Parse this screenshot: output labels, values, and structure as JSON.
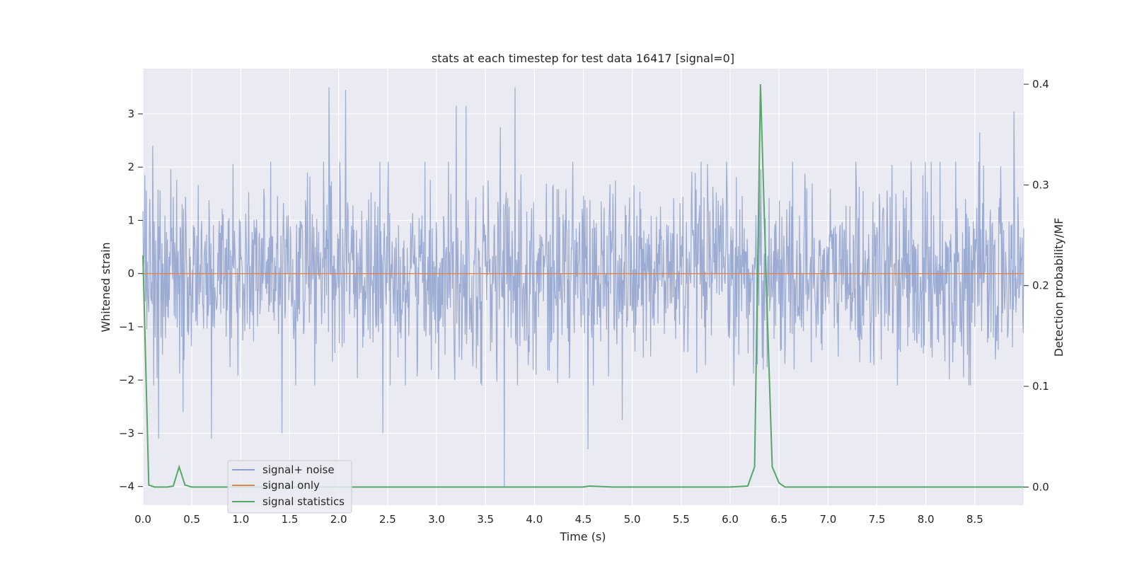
{
  "chart_data": {
    "type": "line",
    "title": "stats at each timestep for test data 16417 [signal=0]",
    "xlabel": "Time (s)",
    "ylabel": "Whitened strain",
    "y2label": "Detection probability/MF",
    "xlim": [
      0.0,
      9.0
    ],
    "ylim": [
      -4.35,
      3.85
    ],
    "y2lim": [
      -0.018,
      0.4155
    ],
    "x_ticks": [
      "0.0",
      "0.5",
      "1.0",
      "1.5",
      "2.0",
      "2.5",
      "3.0",
      "3.5",
      "4.0",
      "4.5",
      "5.0",
      "5.5",
      "6.0",
      "6.5",
      "7.0",
      "7.5",
      "8.0",
      "8.5"
    ],
    "y_ticks": [
      "3",
      "2",
      "1",
      "0",
      "−1",
      "−2",
      "−3",
      "−4"
    ],
    "y2_ticks": [
      "0.4",
      "0.3",
      "0.2",
      "0.1",
      "0.0"
    ],
    "grid": true,
    "legend_position": "lower-left",
    "colors": {
      "signal_noise": "#8da0cb",
      "signal_only": "#dd8452",
      "signal_statistics": "#55a868",
      "background": "#eaeaf2",
      "grid": "#ffffff"
    },
    "series": [
      {
        "name": "signal+ noise",
        "axis": "left",
        "note_values": "noise-like whitened strain, envelope approx ±1.7 with spikes",
        "peaks": [
          {
            "x": 0.02,
            "y": 1.85
          },
          {
            "x": 0.1,
            "y": 2.4
          },
          {
            "x": 0.16,
            "y": 2.9
          },
          {
            "x": 0.16,
            "y": -3.1
          },
          {
            "x": 0.41,
            "y": -2.6
          },
          {
            "x": 0.7,
            "y": -3.1
          },
          {
            "x": 1.42,
            "y": -3.0
          },
          {
            "x": 1.9,
            "y": 3.5
          },
          {
            "x": 2.07,
            "y": 3.45
          },
          {
            "x": 2.45,
            "y": -3.0
          },
          {
            "x": 3.2,
            "y": 3.15
          },
          {
            "x": 3.3,
            "y": 3.15
          },
          {
            "x": 3.65,
            "y": 2.75
          },
          {
            "x": 3.69,
            "y": -4.0
          },
          {
            "x": 3.8,
            "y": 3.5
          },
          {
            "x": 4.55,
            "y": -3.3
          },
          {
            "x": 4.9,
            "y": -2.75
          },
          {
            "x": 6.3,
            "y": 2.4
          },
          {
            "x": 8.55,
            "y": 2.65
          },
          {
            "x": 8.9,
            "y": 3.05
          }
        ]
      },
      {
        "name": "signal only",
        "axis": "left",
        "x": [
          0.0,
          9.0
        ],
        "y": [
          0.0,
          0.0
        ]
      },
      {
        "name": "signal statistics",
        "axis": "right",
        "x": [
          0.0,
          0.06,
          0.12,
          0.25,
          0.31,
          0.37,
          0.43,
          0.5,
          0.56,
          1.0,
          2.0,
          3.0,
          4.0,
          4.5,
          4.56,
          4.8,
          5.5,
          6.0,
          6.18,
          6.25,
          6.31,
          6.37,
          6.43,
          6.5,
          6.56,
          7.0,
          8.0,
          9.0
        ],
        "y": [
          0.23,
          0.002,
          0.0,
          0.0,
          0.001,
          0.02,
          0.002,
          0.0,
          0.0,
          0.0,
          0.0,
          0.0,
          0.0,
          0.0,
          0.001,
          0.0,
          0.0,
          0.0,
          0.001,
          0.02,
          0.4,
          0.2,
          0.02,
          0.004,
          0.0,
          0.0,
          0.0,
          0.0
        ]
      }
    ]
  }
}
